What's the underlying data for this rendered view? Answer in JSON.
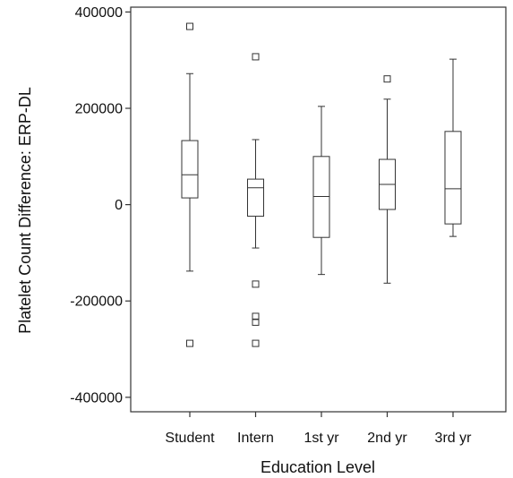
{
  "chart_data": {
    "type": "box",
    "title": "",
    "xlabel": "Education Level",
    "ylabel": "Platelet Count Difference: ERP-DL",
    "ylim": [
      -430000,
      410000
    ],
    "yticks": [
      400000,
      200000,
      0,
      -200000,
      -400000
    ],
    "ytick_labels": [
      "400000",
      "200000",
      "0",
      "-200000",
      "-400000"
    ],
    "grid": false,
    "legend": "none",
    "categories": [
      "Student",
      "Intern",
      "1st yr",
      "2nd yr",
      "3rd yr"
    ],
    "boxes": [
      {
        "category": "Student",
        "whisker_low": -138000,
        "q1": 14000,
        "median": 62000,
        "q3": 133000,
        "whisker_high": 272000,
        "outliers": [
          370000,
          -288000
        ]
      },
      {
        "category": "Intern",
        "whisker_low": -90000,
        "q1": -24000,
        "median": 35000,
        "q3": 53000,
        "whisker_high": 135000,
        "outliers": [
          307000,
          -165000,
          -232000,
          -244000,
          -288000
        ]
      },
      {
        "category": "1st yr",
        "whisker_low": -145000,
        "q1": -68000,
        "median": 17000,
        "q3": 100000,
        "whisker_high": 204000,
        "outliers": []
      },
      {
        "category": "2nd yr",
        "whisker_low": -163000,
        "q1": -10000,
        "median": 42000,
        "q3": 94000,
        "whisker_high": 219000,
        "outliers": [
          261000
        ]
      },
      {
        "category": "3rd yr",
        "whisker_low": -66000,
        "q1": -40000,
        "median": 33000,
        "q3": 152000,
        "whisker_high": 302000,
        "outliers": []
      }
    ],
    "colors": {
      "stroke": "#333333",
      "fill": "#ffffff",
      "text": "#111111"
    }
  }
}
